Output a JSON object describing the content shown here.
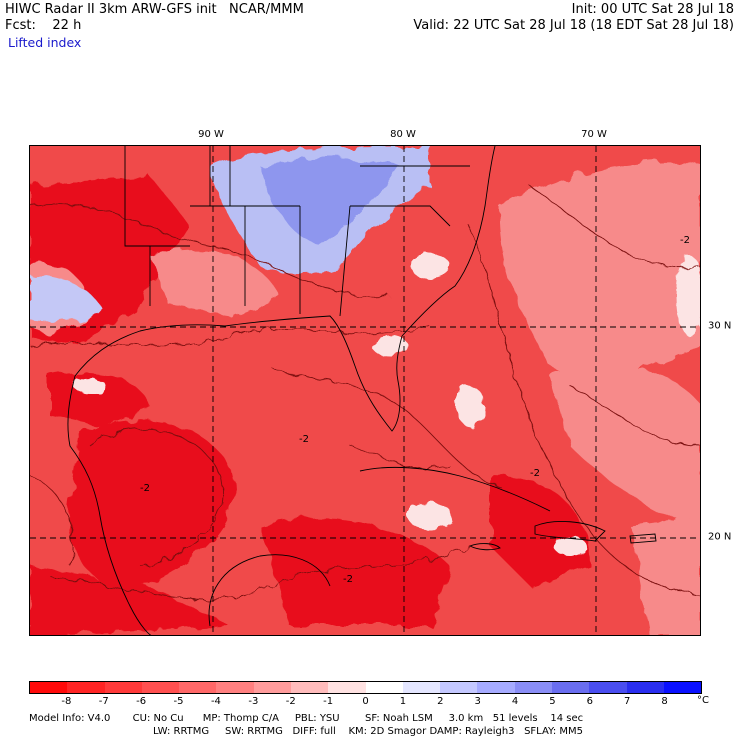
{
  "header": {
    "left_line1": "HIWC Radar II 3km ARW-GFS init   NCAR/MMM",
    "left_line2": "Fcst:    22 h",
    "field_name": "Lifted index",
    "right_line1": "Init: 00 UTC Sat 28 Jul 18",
    "right_line2": "Valid: 22 UTC Sat 28 Jul 18 (18 EDT Sat 28 Jul 18)"
  },
  "map": {
    "lon_labels": [
      "90 W",
      "80 W",
      "70 W"
    ],
    "lat_labels": [
      "30 N",
      "20 N"
    ],
    "contour_labels": [
      "-2",
      "-2",
      "-2",
      "-2",
      "-2"
    ],
    "colors": {
      "strong_negative": "#e8101c",
      "moderate_negative": "#f04a4a",
      "weak_negative": "#f78a8a",
      "near_zero": "#fce4e4",
      "positive": "#9aa4f2",
      "contour": "#7a1010",
      "boundary": "#000000"
    }
  },
  "colorbar": {
    "ticks": [
      "-8",
      "-7",
      "-6",
      "-5",
      "-4",
      "-3",
      "-2",
      "-1",
      "0",
      "1",
      "2",
      "3",
      "4",
      "5",
      "6",
      "7",
      "8"
    ],
    "unit": "°C",
    "colors": [
      "#ff0a0a",
      "#ff2424",
      "#ff3a3a",
      "#ff5050",
      "#ff6868",
      "#ff8080",
      "#ff9c9c",
      "#ffbcbc",
      "#ffe2e2",
      "#ffffff",
      "#e4e6ff",
      "#c4c8ff",
      "#a6abff",
      "#8a8ef6",
      "#6a6ef0",
      "#4a4ef0",
      "#2a2ef0",
      "#0a10ff"
    ]
  },
  "model_info": {
    "line1": "Model Info: V4.0       CU: No Cu      MP: Thomp C/A     PBL: YSU        SF: Noah LSM     3.0 km   51 levels    14 sec",
    "line2": "LW: RRTMG     SW: RRTMG   DIFF: full    KM: 2D Smagor DAMP: Rayleigh3   SFLAY: MM5"
  }
}
